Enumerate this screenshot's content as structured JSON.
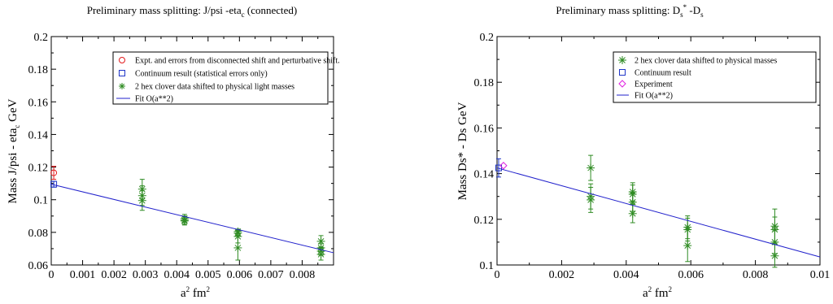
{
  "chart_data": [
    {
      "type": "scatter",
      "title": "Preliminary mass splitting: J/psi -eta",
      "title_sub": "c",
      "title_suffix": "  (connected)",
      "xlabel": "a",
      "xlabel_sup1": "2",
      "xlabel_mid": "  fm",
      "xlabel_sup2": "2",
      "ylabel": "Mass J/psi - eta",
      "ylabel_sub": "c",
      "ylabel_suffix": " GeV",
      "xlim": [
        0,
        0.009
      ],
      "ylim": [
        0.06,
        0.2
      ],
      "xticks": [
        0,
        0.001,
        0.002,
        0.003,
        0.004,
        0.005,
        0.006,
        0.007,
        0.008
      ],
      "xtick_labels": [
        "0",
        "0.001",
        "0.002",
        "0.003",
        "0.004",
        "0.005",
        "0.006",
        "0.007",
        "0.008"
      ],
      "yticks": [
        0.06,
        0.08,
        0.1,
        0.12,
        0.14,
        0.16,
        0.18,
        0.2
      ],
      "ytick_labels": [
        "0.06",
        "0.08",
        "0.1",
        "0.12",
        "0.14",
        "0.16",
        "0.18",
        "0.2"
      ],
      "grid": false,
      "legend_position": "top-right",
      "colors": {
        "expt": "#e31a1c",
        "continuum": "#1f35c8",
        "data": "#2e8b22",
        "fit": "#2222cc"
      },
      "series": [
        {
          "name": "Expt. and errors from disconnected shift and perturbative shift.",
          "marker": "circle",
          "color": "#e31a1c",
          "points": [
            {
              "x": 8e-05,
              "y": 0.1165,
              "yerr": 0.004
            }
          ]
        },
        {
          "name": "Continuum result (statistical errors only)",
          "marker": "square",
          "color": "#1f35c8",
          "points": [
            {
              "x": 8e-05,
              "y": 0.1095,
              "yerr": 0.0018
            }
          ]
        },
        {
          "name": "2 hex clover data shifted to physical light masses",
          "marker": "star",
          "color": "#2e8b22",
          "points": [
            {
              "x": 0.0029,
              "y": 0.1065,
              "yerr": 0.006
            },
            {
              "x": 0.0029,
              "y": 0.1025,
              "yerr": 0.006
            },
            {
              "x": 0.0029,
              "y": 0.0995,
              "yerr": 0.006
            },
            {
              "x": 0.00425,
              "y": 0.0885,
              "yerr": 0.0025
            },
            {
              "x": 0.00425,
              "y": 0.0875,
              "yerr": 0.0025
            },
            {
              "x": 0.00425,
              "y": 0.087,
              "yerr": 0.0025
            },
            {
              "x": 0.00595,
              "y": 0.0805,
              "yerr": 0.0015
            },
            {
              "x": 0.00595,
              "y": 0.0795,
              "yerr": 0.0015
            },
            {
              "x": 0.00595,
              "y": 0.0775,
              "yerr": 0.004
            },
            {
              "x": 0.00595,
              "y": 0.0705,
              "yerr": 0.0075
            },
            {
              "x": 0.0086,
              "y": 0.0745,
              "yerr": 0.0035
            },
            {
              "x": 0.0086,
              "y": 0.0705,
              "yerr": 0.0025
            },
            {
              "x": 0.0086,
              "y": 0.0685,
              "yerr": 0.0025
            },
            {
              "x": 0.0086,
              "y": 0.0665,
              "yerr": 0.0035
            }
          ]
        },
        {
          "name": "Fit O(a**2)",
          "marker": "line",
          "color": "#2222cc",
          "line": [
            {
              "x": 0,
              "y": 0.1095
            },
            {
              "x": 0.009,
              "y": 0.0675
            }
          ]
        }
      ]
    },
    {
      "type": "scatter",
      "title": "Preliminary mass splitting: D",
      "title_sub": "s",
      "title_sup": "*",
      "title_suffix": " -D",
      "title_sub2": "s",
      "xlabel": "a",
      "xlabel_sup1": "2",
      "xlabel_mid": "  fm",
      "xlabel_sup2": "2",
      "ylabel": "Mass Ds* - Ds GeV",
      "xlim": [
        0,
        0.01
      ],
      "ylim": [
        0.1,
        0.2
      ],
      "xticks": [
        0,
        0.002,
        0.004,
        0.006,
        0.008,
        0.01
      ],
      "xtick_labels": [
        "0",
        "0.002",
        "0.004",
        "0.006",
        "0.008",
        "0.01"
      ],
      "yticks": [
        0.1,
        0.12,
        0.14,
        0.16,
        0.18,
        0.2
      ],
      "ytick_labels": [
        "0.1",
        "0.12",
        "0.14",
        "0.16",
        "0.18",
        "0.2"
      ],
      "grid": false,
      "legend_position": "top-right",
      "colors": {
        "expt": "#e020e0",
        "continuum": "#1f35c8",
        "data": "#2e8b22",
        "fit": "#2222cc"
      },
      "series": [
        {
          "name": "2 hex clover data shifted to physical masses",
          "marker": "star",
          "color": "#2e8b22",
          "points": [
            {
              "x": 0.0029,
              "y": 0.1425,
              "yerr": 0.0055
            },
            {
              "x": 0.0029,
              "y": 0.13,
              "yerr": 0.0055
            },
            {
              "x": 0.0029,
              "y": 0.1285,
              "yerr": 0.0055
            },
            {
              "x": 0.0042,
              "y": 0.132,
              "yerr": 0.004
            },
            {
              "x": 0.0042,
              "y": 0.131,
              "yerr": 0.004
            },
            {
              "x": 0.0042,
              "y": 0.1275,
              "yerr": 0.004
            },
            {
              "x": 0.0042,
              "y": 0.1225,
              "yerr": 0.004
            },
            {
              "x": 0.0059,
              "y": 0.1165,
              "yerr": 0.005
            },
            {
              "x": 0.0059,
              "y": 0.1155,
              "yerr": 0.005
            },
            {
              "x": 0.0059,
              "y": 0.1085,
              "yerr": 0.007
            },
            {
              "x": 0.0086,
              "y": 0.117,
              "yerr": 0.0075
            },
            {
              "x": 0.0086,
              "y": 0.1155,
              "yerr": 0.0055
            },
            {
              "x": 0.0086,
              "y": 0.11,
              "yerr": 0.005
            },
            {
              "x": 0.0086,
              "y": 0.104,
              "yerr": 0.005
            }
          ]
        },
        {
          "name": "Continuum result",
          "marker": "square",
          "color": "#1f35c8",
          "points": [
            {
              "x": 5e-05,
              "y": 0.1425,
              "yerr": 0.004
            }
          ]
        },
        {
          "name": "Experiment",
          "marker": "diamond",
          "color": "#e020e0",
          "points": [
            {
              "x": 0.0002,
              "y": 0.1435,
              "yerr": 0
            }
          ]
        },
        {
          "name": "Fit O(a**2)",
          "marker": "line",
          "color": "#2222cc",
          "line": [
            {
              "x": 0,
              "y": 0.1425
            },
            {
              "x": 0.01,
              "y": 0.1035
            }
          ]
        }
      ]
    }
  ]
}
